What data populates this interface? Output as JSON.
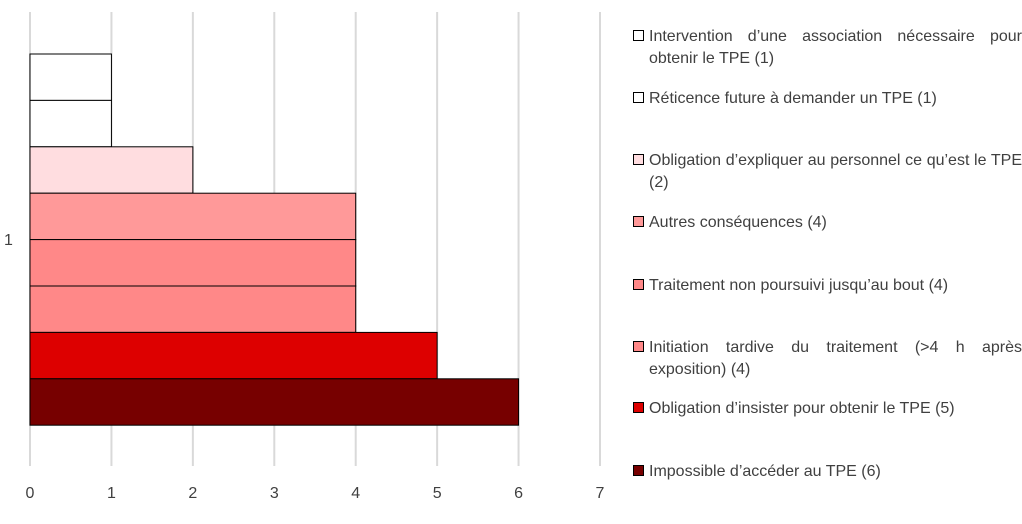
{
  "chart_data": {
    "type": "bar",
    "orientation": "horizontal",
    "categories": [
      "1"
    ],
    "xlim": [
      0,
      7
    ],
    "xticks": [
      "0",
      "1",
      "2",
      "3",
      "4",
      "5",
      "6",
      "7"
    ],
    "grid": true,
    "legend_position": "right",
    "series": [
      {
        "name": "Intervention d’une association nécessaire pour obtenir le TPE (1)",
        "values": [
          1
        ],
        "color": "#FFFFFF"
      },
      {
        "name": "Réticence future à demander un TPE (1)",
        "values": [
          1
        ],
        "color": "#FFFFFF"
      },
      {
        "name": "Obligation d’expliquer au personnel ce qu’est le TPE (2)",
        "values": [
          2
        ],
        "color": "#FFDDE0"
      },
      {
        "name": "Autres conséquences (4)",
        "values": [
          4
        ],
        "color": "#FF9999"
      },
      {
        "name": "Traitement non poursuivi jusqu’au bout (4)",
        "values": [
          4
        ],
        "color": "#FF8888"
      },
      {
        "name": "Initiation tardive du traitement (>4 h après exposition) (4)",
        "values": [
          4
        ],
        "color": "#FF8888"
      },
      {
        "name": "Obligation d’insister pour obtenir le TPE (5)",
        "values": [
          5
        ],
        "color": "#DD0000"
      },
      {
        "name": "Impossible d’accéder au TPE (6)",
        "values": [
          6
        ],
        "color": "#770000"
      }
    ]
  }
}
